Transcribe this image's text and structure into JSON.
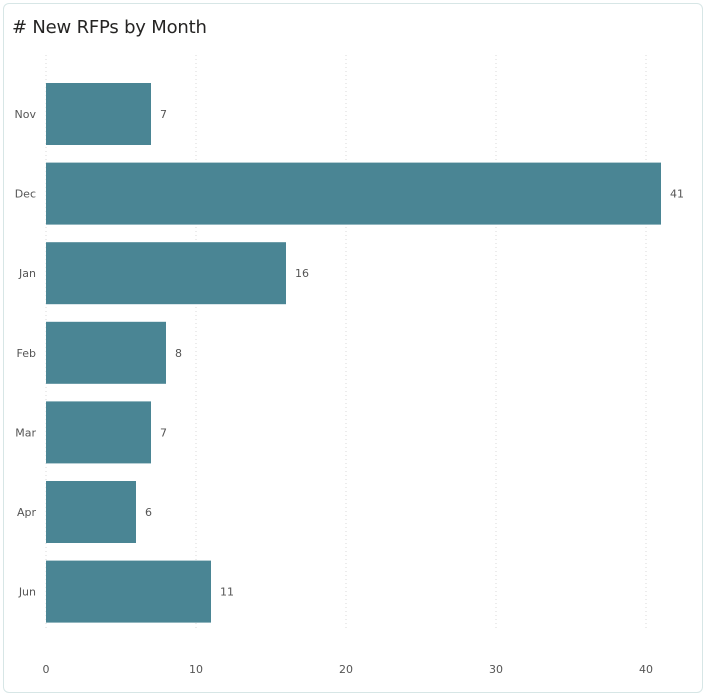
{
  "title": "# New RFPs by Month",
  "colors": {
    "bar": "#4a8594",
    "grid": "#d9d9d9",
    "card_border": "#d7e6e6"
  },
  "chart_data": {
    "type": "bar",
    "orientation": "horizontal",
    "categories": [
      "Nov",
      "Dec",
      "Jan",
      "Feb",
      "Mar",
      "Apr",
      "Jun"
    ],
    "values": [
      7,
      41,
      16,
      8,
      7,
      6,
      11
    ],
    "data_labels": true,
    "xlim": [
      0,
      43
    ],
    "xticks": [
      0,
      10,
      20,
      30,
      40
    ],
    "grid": "vertical-dotted",
    "legend": "none"
  }
}
